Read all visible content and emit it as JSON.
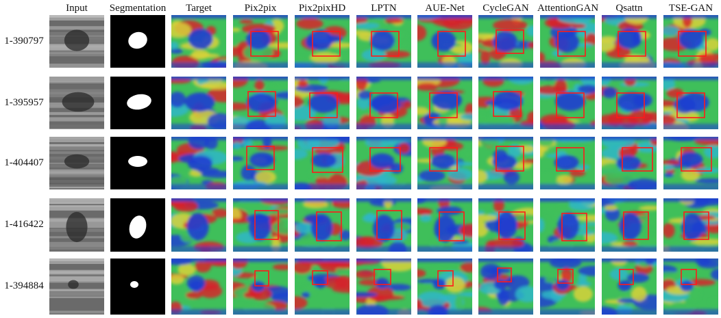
{
  "figure": {
    "columns": [
      "Input",
      "Segmentation",
      "Target",
      "Pix2pix",
      "Pix2pixHD",
      "LPTN",
      "AUE-Net",
      "CycleGAN",
      "AttentionGAN",
      "Qsattn",
      "TSE-GAN"
    ],
    "rows": [
      {
        "label": "1-390797"
      },
      {
        "label": "1-395957"
      },
      {
        "label": "1-404407"
      },
      {
        "label": "1-416422"
      },
      {
        "label": "1-394884"
      }
    ]
  },
  "colors": {
    "heat_blue": "#1f3fd0",
    "heat_cyan": "#2fb6c8",
    "heat_green": "#3fbf5a",
    "heat_yellow": "#d8d23a",
    "heat_red": "#d6232a",
    "box_red": "#ff1a1a",
    "ultrasound_dark": "#2a2a2a",
    "ultrasound_light": "#b9b9b9"
  }
}
